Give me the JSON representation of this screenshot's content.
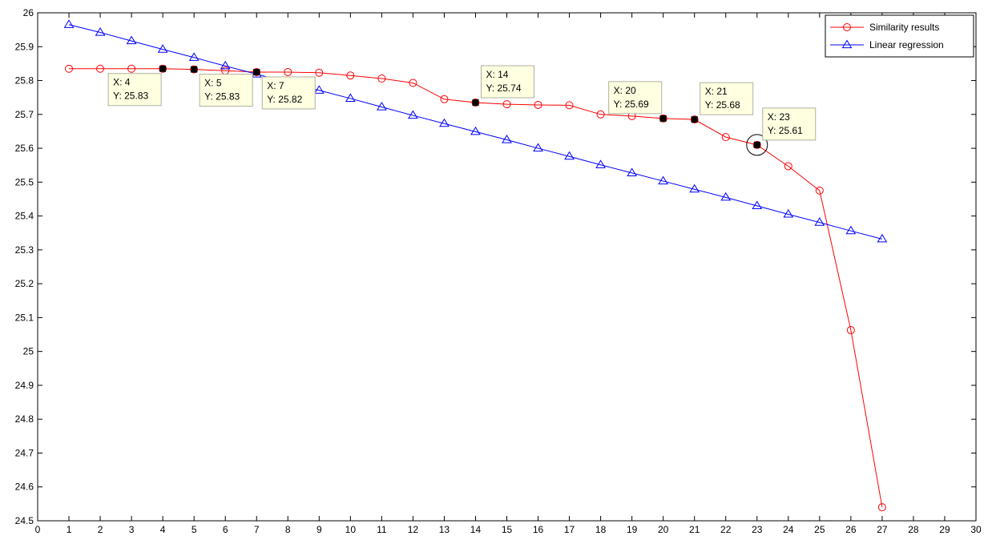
{
  "chart_data": {
    "type": "line",
    "title": "",
    "xlabel": "",
    "ylabel": "",
    "xlim": [
      0,
      30
    ],
    "ylim": [
      24.5,
      26
    ],
    "xticks": [
      0,
      1,
      2,
      3,
      4,
      5,
      6,
      7,
      8,
      9,
      10,
      11,
      12,
      13,
      14,
      15,
      16,
      17,
      18,
      19,
      20,
      21,
      22,
      23,
      24,
      25,
      26,
      27,
      28,
      29,
      30
    ],
    "yticks": [
      24.5,
      24.6,
      24.7,
      24.8,
      24.9,
      25,
      25.1,
      25.2,
      25.3,
      25.4,
      25.5,
      25.6,
      25.7,
      25.8,
      25.9,
      26
    ],
    "ytick_labels": [
      "24.5",
      "24.6",
      "24.7",
      "24.8",
      "24.9",
      "25",
      "25.1",
      "25.2",
      "25.3",
      "25.4",
      "25.5",
      "25.6",
      "25.7",
      "25.8",
      "25.9",
      "26"
    ],
    "grid": false,
    "legend_position": "top-right",
    "series": [
      {
        "name": "Similarity results",
        "color": "#ff0000",
        "marker": "circle",
        "x": [
          1,
          2,
          3,
          4,
          5,
          6,
          7,
          8,
          9,
          10,
          11,
          12,
          13,
          14,
          15,
          16,
          17,
          18,
          19,
          20,
          21,
          22,
          23,
          24,
          25,
          26,
          27
        ],
        "y": [
          25.835,
          25.835,
          25.835,
          25.835,
          25.833,
          25.829,
          25.825,
          25.825,
          25.823,
          25.815,
          25.806,
          25.793,
          25.745,
          25.735,
          25.73,
          25.728,
          25.727,
          25.7,
          25.695,
          25.688,
          25.685,
          25.633,
          25.61,
          25.547,
          25.475,
          25.063,
          24.54
        ]
      },
      {
        "name": "Linear regression",
        "color": "#0000ff",
        "marker": "triangle",
        "x": [
          1,
          2,
          3,
          4,
          5,
          6,
          7,
          8,
          9,
          10,
          11,
          12,
          13,
          14,
          15,
          16,
          17,
          18,
          19,
          20,
          21,
          22,
          23,
          24,
          25,
          26,
          27
        ],
        "y": [
          25.965,
          25.942,
          25.917,
          25.892,
          25.868,
          25.843,
          25.819,
          25.794,
          25.771,
          25.747,
          25.722,
          25.697,
          25.673,
          25.649,
          25.625,
          25.6,
          25.576,
          25.551,
          25.527,
          25.503,
          25.479,
          25.455,
          25.43,
          25.405,
          25.381,
          25.356,
          25.332
        ]
      }
    ],
    "datatips": [
      {
        "x": 4,
        "y": 25.835,
        "x_label": "X: 4",
        "y_label": "Y: 25.83",
        "placement": "below-left",
        "highlighted": false
      },
      {
        "x": 5,
        "y": 25.833,
        "x_label": "X: 5",
        "y_label": "Y: 25.83",
        "placement": "below-right",
        "highlighted": false
      },
      {
        "x": 7,
        "y": 25.825,
        "x_label": "X: 7",
        "y_label": "Y: 25.82",
        "placement": "below-right",
        "highlighted": false
      },
      {
        "x": 14,
        "y": 25.735,
        "x_label": "X: 14",
        "y_label": "Y: 25.74",
        "placement": "above-right",
        "highlighted": false
      },
      {
        "x": 20,
        "y": 25.688,
        "x_label": "X: 20",
        "y_label": "Y: 25.69",
        "placement": "above-left",
        "highlighted": false
      },
      {
        "x": 21,
        "y": 25.685,
        "x_label": "X: 21",
        "y_label": "Y: 25.68",
        "placement": "above-right",
        "highlighted": false
      },
      {
        "x": 23,
        "y": 25.61,
        "x_label": "X: 23",
        "y_label": "Y: 25.61",
        "placement": "above-right",
        "highlighted": true
      }
    ]
  }
}
